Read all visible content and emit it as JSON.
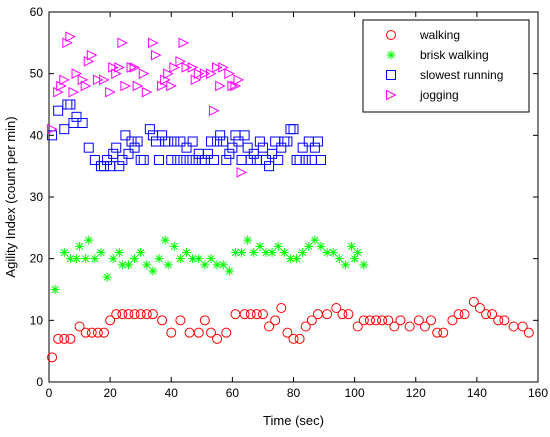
{
  "chart_data": {
    "type": "scatter",
    "title": "",
    "xlabel": "Time (sec)",
    "ylabel": "Agility Index (count per min)",
    "xlim": [
      0,
      160
    ],
    "ylim": [
      0,
      60
    ],
    "xticks": [
      "0",
      "20",
      "40",
      "60",
      "80",
      "100",
      "120",
      "140",
      "160"
    ],
    "yticks": [
      "0",
      "10",
      "20",
      "30",
      "40",
      "50",
      "60"
    ],
    "grid": false,
    "legend_position": "top-right",
    "series": [
      {
        "name": "walking",
        "marker": "circle",
        "color": "#ff0000",
        "x": [
          1,
          3,
          5,
          7,
          10,
          12,
          14,
          16,
          18,
          20,
          22,
          24,
          26,
          28,
          30,
          32,
          34,
          37,
          40,
          43,
          46,
          49,
          51,
          53,
          55,
          58,
          61,
          64,
          66,
          68,
          70,
          72,
          74,
          76,
          78,
          80,
          82,
          84,
          86,
          88,
          91,
          94,
          96,
          98,
          101,
          103,
          105,
          107,
          109,
          111,
          113,
          115,
          118,
          121,
          123,
          125,
          127,
          129,
          132,
          134,
          136,
          139,
          141,
          143,
          145,
          147,
          149,
          152,
          155,
          157
        ],
        "y": [
          4,
          7,
          7,
          7,
          9,
          8,
          8,
          8,
          8,
          10,
          11,
          11,
          11,
          11,
          11,
          11,
          11,
          10,
          8,
          10,
          8,
          8,
          10,
          8,
          7,
          8,
          11,
          11,
          11,
          11,
          11,
          9,
          10,
          12,
          8,
          7,
          7,
          9,
          10,
          11,
          11,
          12,
          11,
          11,
          9,
          10,
          10,
          10,
          10,
          10,
          9,
          10,
          9,
          10,
          9,
          10,
          8,
          8,
          10,
          11,
          11,
          13,
          12,
          11,
          11,
          10,
          10,
          9,
          9,
          8
        ]
      },
      {
        "name": "brisk walking",
        "marker": "star",
        "color": "#00ff00",
        "x": [
          2,
          5,
          7,
          9,
          10,
          12,
          13,
          15,
          17,
          19,
          21,
          23,
          24,
          26,
          28,
          30,
          32,
          34,
          36,
          38,
          39,
          41,
          43,
          45,
          47,
          49,
          51,
          53,
          55,
          57,
          59,
          61,
          63,
          65,
          67,
          69,
          71,
          73,
          75,
          77,
          79,
          81,
          83,
          85,
          87,
          89,
          91,
          93,
          95,
          97,
          99,
          100,
          101,
          103
        ],
        "y": [
          15,
          21,
          20,
          20,
          22,
          20,
          23,
          20,
          21,
          17,
          20,
          21,
          19,
          19,
          20,
          21,
          19,
          18,
          20,
          23,
          19,
          22,
          20,
          21,
          20,
          20,
          19,
          20,
          19,
          19,
          18,
          21,
          21,
          23,
          21,
          22,
          21,
          21,
          22,
          21,
          20,
          20,
          21,
          22,
          23,
          22,
          21,
          21,
          20,
          19,
          22,
          20,
          21,
          19
        ],
        "note": ""
      },
      {
        "name": "slowest running",
        "marker": "square",
        "color": "#0000ff",
        "x": [
          1,
          3,
          5,
          6,
          7,
          8,
          9,
          11,
          13,
          15,
          17,
          18,
          19,
          20,
          21,
          22,
          23,
          24,
          25,
          26,
          27,
          28,
          29,
          30,
          31,
          33,
          34,
          35,
          36,
          37,
          38,
          39,
          40,
          41,
          42,
          43,
          44,
          45,
          46,
          47,
          48,
          49,
          50,
          51,
          52,
          53,
          54,
          55,
          56,
          57,
          58,
          59,
          60,
          61,
          62,
          63,
          64,
          65,
          66,
          67,
          68,
          69,
          70,
          71,
          72,
          73,
          74,
          75,
          76,
          77,
          78,
          79,
          80,
          81,
          82,
          83,
          84,
          85,
          86,
          87,
          88,
          89
        ],
        "y": [
          40,
          44,
          41,
          45,
          45,
          42,
          43,
          42,
          38,
          36,
          35,
          35,
          36,
          35,
          37,
          38,
          35,
          36,
          40,
          37,
          39,
          38,
          39,
          36,
          36,
          41,
          40,
          39,
          36,
          40,
          39,
          39,
          36,
          39,
          36,
          39,
          36,
          38,
          36,
          39,
          36,
          37,
          36,
          36,
          37,
          39,
          36,
          39,
          40,
          39,
          36,
          37,
          38,
          40,
          39,
          36,
          40,
          38,
          36,
          37,
          36,
          39,
          38,
          36,
          35,
          37,
          39,
          36,
          38,
          39,
          39,
          41,
          41,
          36,
          36,
          38,
          36,
          39,
          36,
          38,
          39,
          36
        ]
      },
      {
        "name": "jogging",
        "marker": "triangle-right",
        "color": "#ff00ff",
        "x": [
          1,
          3,
          4,
          5,
          6,
          7,
          8,
          9,
          11,
          12,
          13,
          14,
          16,
          18,
          20,
          21,
          22,
          23,
          24,
          25,
          27,
          28,
          29,
          31,
          32,
          34,
          35,
          37,
          38,
          39,
          40,
          41,
          43,
          44,
          45,
          47,
          48,
          49,
          51,
          53,
          54,
          55,
          56,
          57,
          59,
          60,
          61,
          62,
          63
        ],
        "y": [
          41,
          47,
          48,
          49,
          55,
          56,
          47,
          50,
          49,
          48,
          52,
          53,
          49,
          49,
          47,
          51,
          50,
          51,
          55,
          48,
          51,
          51,
          48,
          50,
          47,
          55,
          53,
          48,
          49,
          50,
          48,
          51,
          52,
          55,
          51,
          51,
          49,
          50,
          50,
          50,
          44,
          51,
          48,
          51,
          50,
          48,
          48,
          49,
          34
        ]
      }
    ]
  }
}
